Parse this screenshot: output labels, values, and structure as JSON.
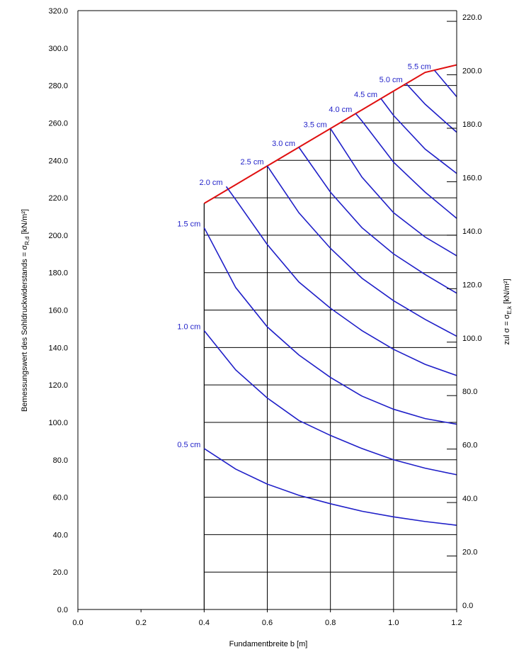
{
  "chart_data": {
    "type": "line",
    "xlabel": "Fundamentbreite b [m]",
    "ylabel": "Bemessungswert des Sohldruckwiderstands = σ",
    "ylabel_sub": "R,d",
    "ylabel_unit": " [kN/m²]",
    "y2label": "zul σ = σ",
    "y2label_sub": "E,k",
    "y2label_unit": " [kN/m²]",
    "xlim": [
      0.0,
      1.2
    ],
    "ylim": [
      0.0,
      320.0
    ],
    "y2lim": [
      0.0,
      224.0
    ],
    "x_ticks": [
      "0.0",
      "0.2",
      "0.4",
      "0.6",
      "0.8",
      "1.0",
      "1.2"
    ],
    "y_ticks": [
      "0.0",
      "20.0",
      "40.0",
      "60.0",
      "80.0",
      "100.0",
      "120.0",
      "140.0",
      "160.0",
      "180.0",
      "200.0",
      "220.0",
      "240.0",
      "260.0",
      "280.0",
      "300.0",
      "320.0"
    ],
    "y2_ticks": [
      "0.0",
      "20.0",
      "40.0",
      "60.0",
      "80.0",
      "100.0",
      "120.0",
      "140.0",
      "160.0",
      "180.0",
      "200.0",
      "220.0"
    ],
    "grid": true,
    "colors": {
      "settlement": "#1f1fc8",
      "limit": "#e01010",
      "axis": "#000000"
    },
    "limit_line": {
      "x": [
        0.4,
        0.5,
        0.6,
        0.7,
        0.8,
        0.9,
        1.0,
        1.1,
        1.2
      ],
      "y": [
        217,
        227,
        237,
        247,
        257,
        267,
        277,
        287,
        291
      ]
    },
    "series": [
      {
        "name": "0.5 cm",
        "x": [
          0.4,
          0.5,
          0.6,
          0.7,
          0.8,
          0.9,
          1.0,
          1.1,
          1.2
        ],
        "y": [
          86,
          75,
          67,
          61,
          56.5,
          52.5,
          49.5,
          47,
          45
        ]
      },
      {
        "name": "1.0 cm",
        "x": [
          0.4,
          0.5,
          0.6,
          0.7,
          0.8,
          0.9,
          1.0,
          1.1,
          1.2
        ],
        "y": [
          149,
          128,
          113,
          101,
          93,
          86,
          80,
          75.5,
          72
        ]
      },
      {
        "name": "1.5 cm",
        "x": [
          0.4,
          0.5,
          0.6,
          0.7,
          0.8,
          0.9,
          1.0,
          1.1,
          1.2
        ],
        "y": [
          204,
          172,
          151,
          136,
          124,
          114,
          107,
          102,
          99
        ]
      },
      {
        "name": "2.0 cm",
        "x": [
          0.47,
          0.5,
          0.6,
          0.7,
          0.8,
          0.9,
          1.0,
          1.1,
          1.2
        ],
        "y": [
          226,
          219,
          195,
          175,
          161,
          149,
          139,
          131,
          125
        ]
      },
      {
        "name": "2.5 cm",
        "x": [
          0.6,
          0.7,
          0.8,
          0.9,
          1.0,
          1.1,
          1.2
        ],
        "y": [
          237,
          212,
          193,
          177,
          165,
          155,
          146
        ]
      },
      {
        "name": "3.0 cm",
        "x": [
          0.7,
          0.8,
          0.9,
          1.0,
          1.1,
          1.2
        ],
        "y": [
          247,
          223,
          204,
          190,
          179,
          169
        ]
      },
      {
        "name": "3.5 cm",
        "x": [
          0.8,
          0.9,
          1.0,
          1.1,
          1.2
        ],
        "y": [
          257,
          231,
          212,
          199,
          189
        ]
      },
      {
        "name": "4.0 cm",
        "x": [
          0.88,
          0.9,
          1.0,
          1.1,
          1.2
        ],
        "y": [
          265,
          261,
          239,
          223,
          209
        ]
      },
      {
        "name": "4.5 cm",
        "x": [
          0.96,
          1.0,
          1.1,
          1.2
        ],
        "y": [
          273,
          264,
          246,
          233
        ]
      },
      {
        "name": "5.0 cm",
        "x": [
          1.04,
          1.1,
          1.2
        ],
        "y": [
          281,
          270,
          255
        ]
      },
      {
        "name": "5.5 cm",
        "x": [
          1.13,
          1.2
        ],
        "y": [
          288,
          274
        ]
      }
    ]
  }
}
